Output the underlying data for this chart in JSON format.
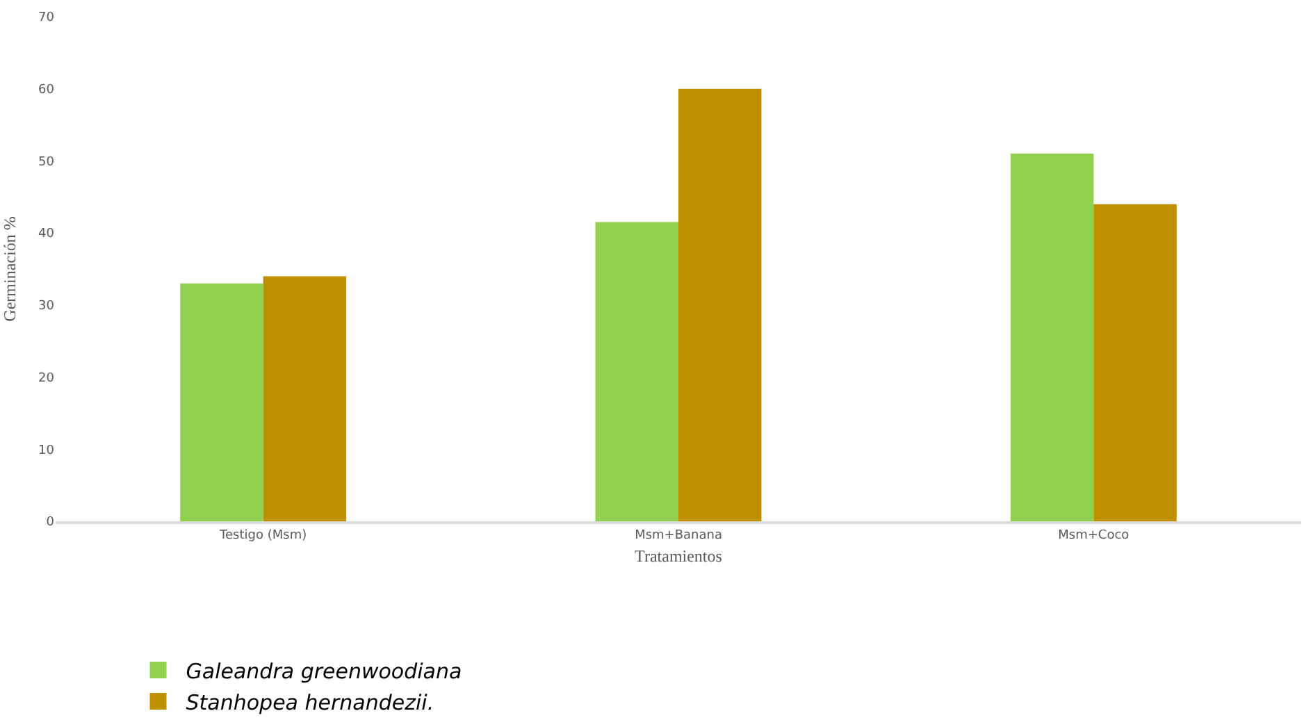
{
  "chart_data": {
    "type": "bar",
    "xlabel": "Tratamientos",
    "ylabel": "Germinación %",
    "categories": [
      "Testigo (Msm)",
      "Msm+Banana",
      "Msm+Coco"
    ],
    "series": [
      {
        "name": "Galeandra greenwoodiana",
        "color": "#92d050",
        "values": [
          33,
          41.5,
          51
        ]
      },
      {
        "name": "Stanhopea hernandezii.",
        "color": "#bf9000",
        "values": [
          34,
          60,
          44
        ]
      }
    ],
    "ylim": [
      0,
      70
    ],
    "yticks": [
      0,
      10,
      20,
      30,
      40,
      50,
      60,
      70
    ],
    "legend": "bottom"
  }
}
